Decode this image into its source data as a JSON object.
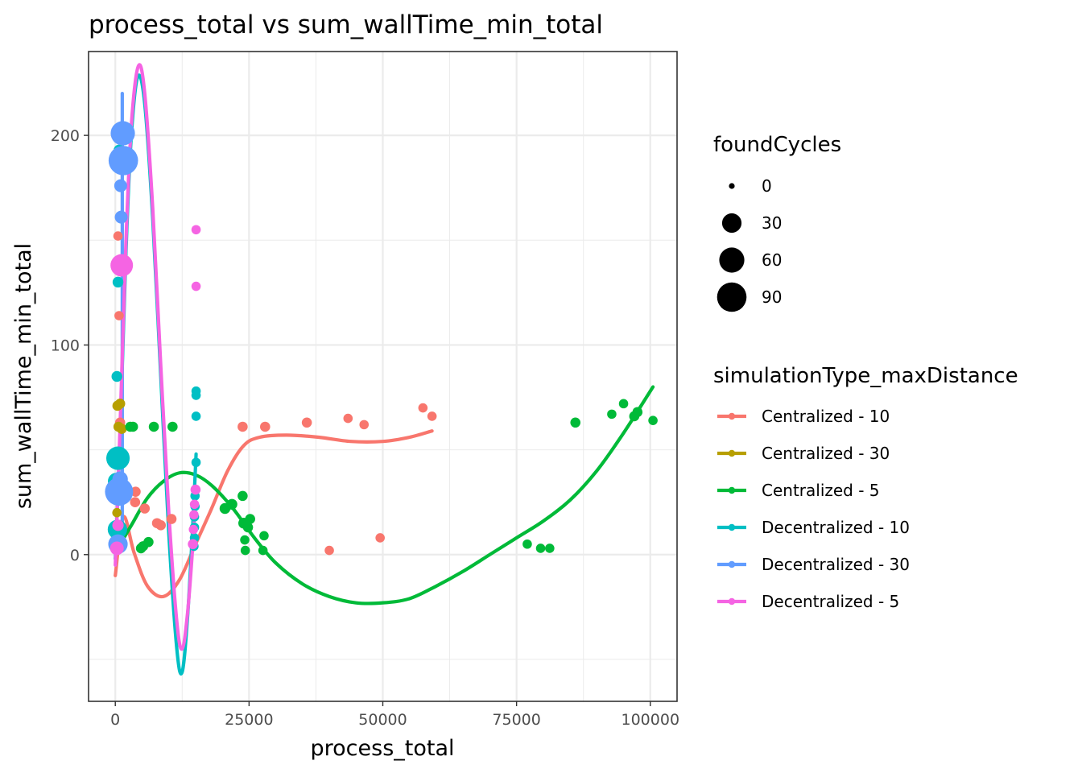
{
  "chart_data": {
    "type": "scatter",
    "title": "process_total  vs  sum_wallTime_min_total",
    "xlabel": "process_total",
    "ylabel": "sum_wallTime_min_total",
    "xlim": [
      -5000,
      105000
    ],
    "ylim": [
      -70,
      240
    ],
    "x_ticks": [
      0,
      25000,
      50000,
      75000,
      100000
    ],
    "x_tick_labels": [
      "0",
      "25000",
      "50000",
      "75000",
      "100000"
    ],
    "y_ticks": [
      0,
      100,
      200
    ],
    "y_tick_labels": [
      "0",
      "100",
      "200"
    ],
    "grid": true,
    "smooth_lines": true,
    "size_legend": {
      "title": "foundCycles",
      "values": [
        0,
        30,
        60,
        90
      ],
      "labels": [
        "0",
        "30",
        "60",
        "90"
      ]
    },
    "color_legend": {
      "title": "simulationType_maxDistance",
      "placement": "right"
    },
    "series": [
      {
        "name": "Centralized - 10",
        "color": "#F8766D",
        "points": [
          {
            "x": 500,
            "y": 152,
            "size": 2
          },
          {
            "x": 700,
            "y": 114,
            "size": 2
          },
          {
            "x": 900,
            "y": 63,
            "size": 3
          },
          {
            "x": 1200,
            "y": 35,
            "size": 4
          },
          {
            "x": 2000,
            "y": 31,
            "size": 3
          },
          {
            "x": 3800,
            "y": 30,
            "size": 3
          },
          {
            "x": 3700,
            "y": 25,
            "size": 3
          },
          {
            "x": 5500,
            "y": 22,
            "size": 3
          },
          {
            "x": 7800,
            "y": 15,
            "size": 3
          },
          {
            "x": 8500,
            "y": 14,
            "size": 3
          },
          {
            "x": 10500,
            "y": 17,
            "size": 3
          },
          {
            "x": 23800,
            "y": 61,
            "size": 3
          },
          {
            "x": 28000,
            "y": 61,
            "size": 3
          },
          {
            "x": 35800,
            "y": 63,
            "size": 3
          },
          {
            "x": 43500,
            "y": 65,
            "size": 2
          },
          {
            "x": 46500,
            "y": 62,
            "size": 2
          },
          {
            "x": 57500,
            "y": 70,
            "size": 2
          },
          {
            "x": 59200,
            "y": 66,
            "size": 2
          },
          {
            "x": 40000,
            "y": 2,
            "size": 2
          },
          {
            "x": 49500,
            "y": 8,
            "size": 2
          },
          {
            "x": 300,
            "y": 5,
            "size": 2
          }
        ],
        "smooth": [
          {
            "x": 0,
            "y": -10
          },
          {
            "x": 1500,
            "y": 18
          },
          {
            "x": 3500,
            "y": 1
          },
          {
            "x": 6000,
            "y": -15
          },
          {
            "x": 9000,
            "y": -20
          },
          {
            "x": 12000,
            "y": -12
          },
          {
            "x": 15000,
            "y": 5
          },
          {
            "x": 18000,
            "y": 22
          },
          {
            "x": 21000,
            "y": 40
          },
          {
            "x": 24000,
            "y": 52
          },
          {
            "x": 27000,
            "y": 56
          },
          {
            "x": 32000,
            "y": 57
          },
          {
            "x": 38000,
            "y": 56
          },
          {
            "x": 44000,
            "y": 54
          },
          {
            "x": 50000,
            "y": 54
          },
          {
            "x": 55000,
            "y": 56
          },
          {
            "x": 59200,
            "y": 59
          }
        ]
      },
      {
        "name": "Centralized - 30",
        "color": "#B79F00",
        "points": [
          {
            "x": 400,
            "y": 71,
            "size": 3
          },
          {
            "x": 900,
            "y": 72,
            "size": 3
          },
          {
            "x": 600,
            "y": 61,
            "size": 3
          },
          {
            "x": 1200,
            "y": 60,
            "size": 3
          },
          {
            "x": 300,
            "y": 20,
            "size": 2
          }
        ],
        "smooth": []
      },
      {
        "name": "Centralized - 5",
        "color": "#00BA38",
        "points": [
          {
            "x": 2800,
            "y": 61,
            "size": 3
          },
          {
            "x": 3300,
            "y": 61,
            "size": 3
          },
          {
            "x": 7200,
            "y": 61,
            "size": 3
          },
          {
            "x": 10700,
            "y": 61,
            "size": 3
          },
          {
            "x": 6200,
            "y": 6,
            "size": 3
          },
          {
            "x": 5200,
            "y": 4,
            "size": 3
          },
          {
            "x": 4800,
            "y": 3,
            "size": 3
          },
          {
            "x": 20500,
            "y": 22,
            "size": 4
          },
          {
            "x": 21800,
            "y": 24,
            "size": 4
          },
          {
            "x": 23800,
            "y": 28,
            "size": 3
          },
          {
            "x": 24000,
            "y": 15,
            "size": 4
          },
          {
            "x": 25200,
            "y": 17,
            "size": 3
          },
          {
            "x": 24800,
            "y": 13,
            "size": 3
          },
          {
            "x": 24200,
            "y": 7,
            "size": 2
          },
          {
            "x": 24300,
            "y": 2,
            "size": 2
          },
          {
            "x": 27800,
            "y": 9,
            "size": 2
          },
          {
            "x": 27600,
            "y": 2,
            "size": 2
          },
          {
            "x": 86000,
            "y": 63,
            "size": 3
          },
          {
            "x": 92800,
            "y": 67,
            "size": 2
          },
          {
            "x": 95000,
            "y": 72,
            "size": 2
          },
          {
            "x": 97000,
            "y": 66,
            "size": 3
          },
          {
            "x": 97600,
            "y": 68,
            "size": 3
          },
          {
            "x": 100500,
            "y": 64,
            "size": 2
          },
          {
            "x": 77000,
            "y": 5,
            "size": 2
          },
          {
            "x": 79500,
            "y": 3,
            "size": 2
          },
          {
            "x": 81200,
            "y": 3,
            "size": 2
          }
        ],
        "smooth": [
          {
            "x": 0,
            "y": 1
          },
          {
            "x": 3000,
            "y": 14
          },
          {
            "x": 6000,
            "y": 27
          },
          {
            "x": 9000,
            "y": 35
          },
          {
            "x": 12000,
            "y": 39
          },
          {
            "x": 15000,
            "y": 38
          },
          {
            "x": 18000,
            "y": 33
          },
          {
            "x": 22000,
            "y": 22
          },
          {
            "x": 26000,
            "y": 8
          },
          {
            "x": 30000,
            "y": -4
          },
          {
            "x": 35000,
            "y": -14
          },
          {
            "x": 40000,
            "y": -20
          },
          {
            "x": 45000,
            "y": -23
          },
          {
            "x": 50000,
            "y": -23
          },
          {
            "x": 55000,
            "y": -21
          },
          {
            "x": 60000,
            "y": -15
          },
          {
            "x": 65000,
            "y": -8
          },
          {
            "x": 70000,
            "y": 0
          },
          {
            "x": 75000,
            "y": 8
          },
          {
            "x": 80000,
            "y": 16
          },
          {
            "x": 85000,
            "y": 26
          },
          {
            "x": 90000,
            "y": 40
          },
          {
            "x": 95000,
            "y": 58
          },
          {
            "x": 100500,
            "y": 80
          }
        ]
      },
      {
        "name": "Decentralized - 10",
        "color": "#00BFC4",
        "points": [
          {
            "x": 500,
            "y": 46,
            "size": 50
          },
          {
            "x": 300,
            "y": 85,
            "size": 4
          },
          {
            "x": 500,
            "y": 130,
            "size": 4
          },
          {
            "x": 700,
            "y": 193,
            "size": 4
          },
          {
            "x": 400,
            "y": 12,
            "size": 30
          },
          {
            "x": 200,
            "y": 35,
            "size": 20
          },
          {
            "x": 15100,
            "y": 78,
            "size": 2
          },
          {
            "x": 15100,
            "y": 76,
            "size": 2
          },
          {
            "x": 15100,
            "y": 66,
            "size": 2
          },
          {
            "x": 15100,
            "y": 44,
            "size": 2
          },
          {
            "x": 14900,
            "y": 28,
            "size": 2
          },
          {
            "x": 14900,
            "y": 23,
            "size": 2
          },
          {
            "x": 14800,
            "y": 18,
            "size": 2
          },
          {
            "x": 14800,
            "y": 13,
            "size": 2
          },
          {
            "x": 14800,
            "y": 8,
            "size": 2
          },
          {
            "x": 14700,
            "y": 4,
            "size": 2
          }
        ],
        "smooth": [
          {
            "x": 0,
            "y": -2
          },
          {
            "x": 1000,
            "y": 65
          },
          {
            "x": 2000,
            "y": 145
          },
          {
            "x": 3000,
            "y": 200
          },
          {
            "x": 4200,
            "y": 228
          },
          {
            "x": 5500,
            "y": 215
          },
          {
            "x": 7000,
            "y": 160
          },
          {
            "x": 8500,
            "y": 85
          },
          {
            "x": 10000,
            "y": 10
          },
          {
            "x": 11500,
            "y": -45
          },
          {
            "x": 12500,
            "y": -56
          },
          {
            "x": 13500,
            "y": -30
          },
          {
            "x": 14500,
            "y": 15
          },
          {
            "x": 15100,
            "y": 48
          }
        ]
      },
      {
        "name": "Decentralized - 30",
        "color": "#619CFF",
        "points": [
          {
            "x": 1400,
            "y": 201,
            "size": 55
          },
          {
            "x": 1500,
            "y": 188,
            "size": 90
          },
          {
            "x": 1000,
            "y": 176,
            "size": 8
          },
          {
            "x": 1100,
            "y": 161,
            "size": 8
          },
          {
            "x": 700,
            "y": 30,
            "size": 80
          },
          {
            "x": 500,
            "y": 5,
            "size": 30
          },
          {
            "x": 900,
            "y": 36,
            "size": 15
          }
        ],
        "smooth": [
          {
            "x": 1300,
            "y": 12
          },
          {
            "x": 1300,
            "y": 220
          }
        ]
      },
      {
        "name": "Decentralized - 5",
        "color": "#F564E3",
        "points": [
          {
            "x": 1200,
            "y": 138,
            "size": 45
          },
          {
            "x": 15100,
            "y": 155,
            "size": 2
          },
          {
            "x": 15100,
            "y": 128,
            "size": 2
          },
          {
            "x": 15000,
            "y": 31,
            "size": 3
          },
          {
            "x": 14800,
            "y": 24,
            "size": 2
          },
          {
            "x": 14700,
            "y": 19,
            "size": 2
          },
          {
            "x": 14600,
            "y": 12,
            "size": 2
          },
          {
            "x": 14500,
            "y": 5,
            "size": 3
          },
          {
            "x": 300,
            "y": 3,
            "size": 10
          },
          {
            "x": 500,
            "y": 14,
            "size": 5
          }
        ],
        "smooth": [
          {
            "x": 0,
            "y": -5
          },
          {
            "x": 1000,
            "y": 70
          },
          {
            "x": 2000,
            "y": 150
          },
          {
            "x": 3000,
            "y": 205
          },
          {
            "x": 4300,
            "y": 233
          },
          {
            "x": 5500,
            "y": 220
          },
          {
            "x": 7000,
            "y": 165
          },
          {
            "x": 8500,
            "y": 90
          },
          {
            "x": 10000,
            "y": 20
          },
          {
            "x": 11500,
            "y": -32
          },
          {
            "x": 12500,
            "y": -45
          },
          {
            "x": 13500,
            "y": -28
          },
          {
            "x": 14500,
            "y": 5
          },
          {
            "x": 15000,
            "y": 28
          }
        ]
      }
    ]
  }
}
